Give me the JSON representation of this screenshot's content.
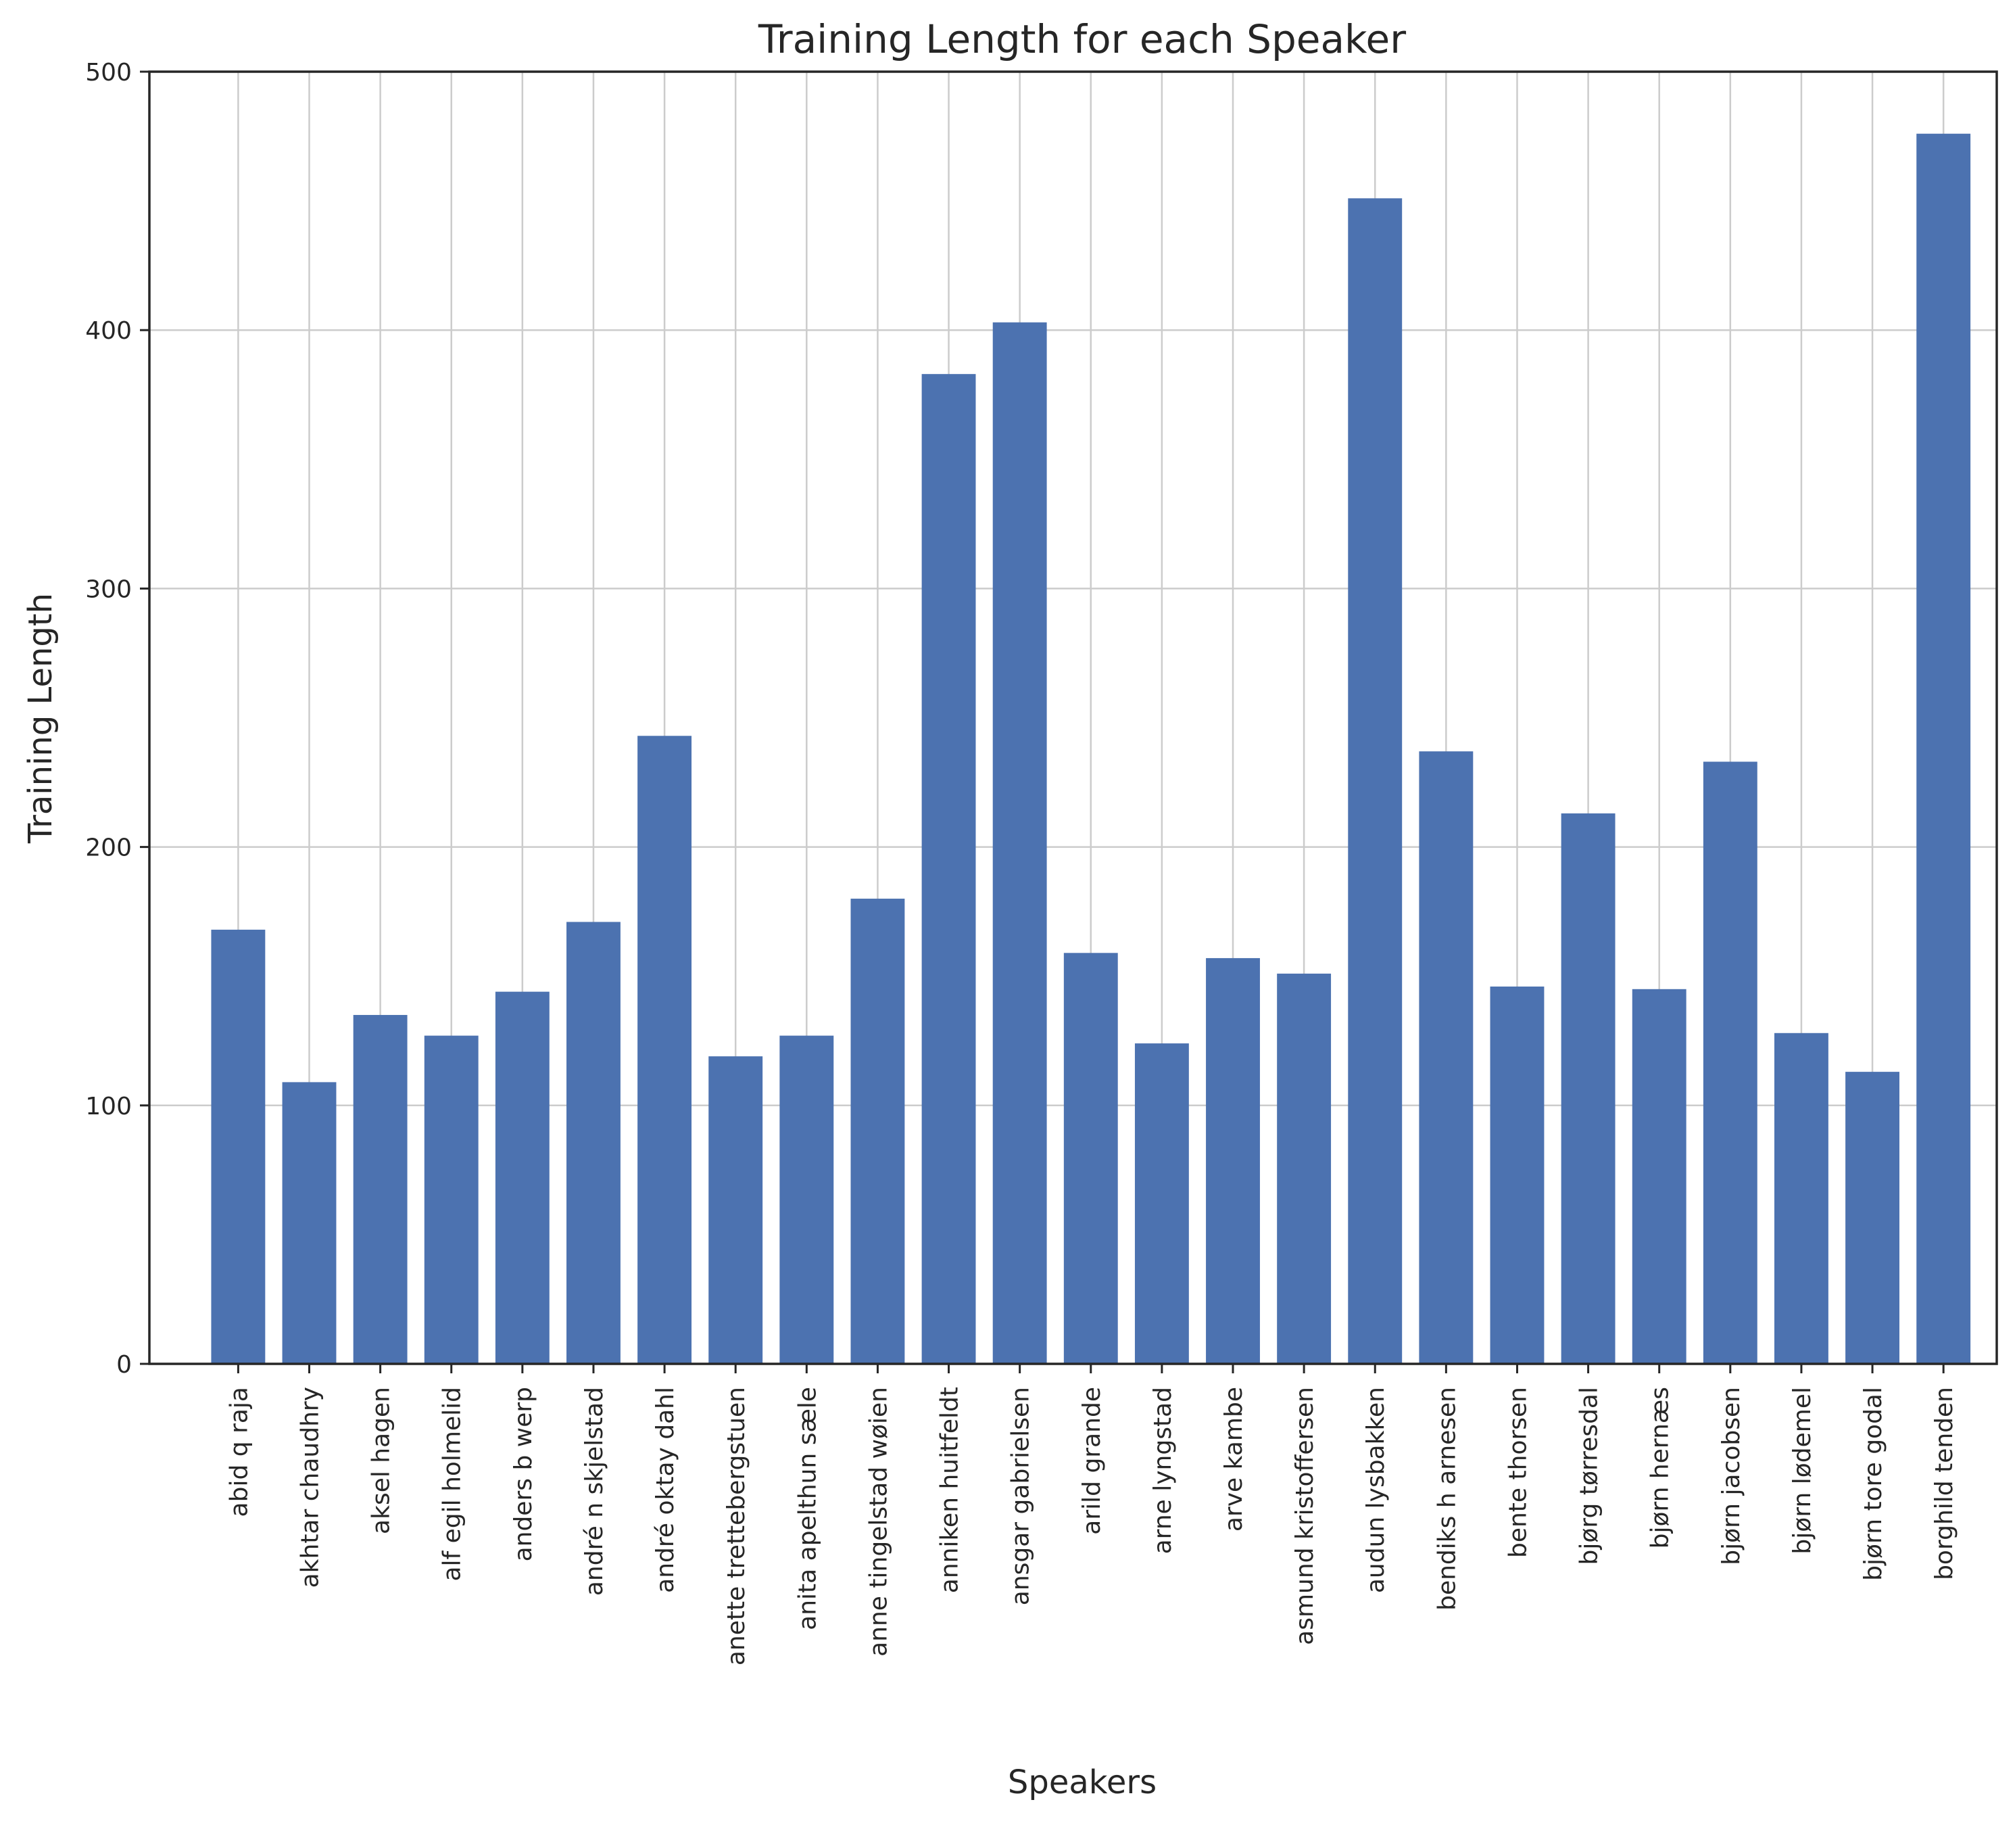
{
  "chart_data": {
    "type": "bar",
    "title": "Training Length for each Speaker",
    "xlabel": "Speakers",
    "ylabel": "Training Length",
    "ylim": [
      0,
      500
    ],
    "yticks": [
      0,
      100,
      200,
      300,
      400,
      500
    ],
    "ytick_labels": [
      "0",
      "100",
      "200",
      "300",
      "400",
      "500"
    ],
    "grid": true,
    "bar_color": "#4c72b0",
    "categories": [
      "abid q raja",
      "akhtar chaudhry",
      "aksel hagen",
      "alf egil holmelid",
      "anders b werp",
      "andré n skjelstad",
      "andré oktay dahl",
      "anette trettebergstuen",
      "anita apelthun sæle",
      "anne tingelstad wøien",
      "anniken huitfeldt",
      "ansgar gabrielsen",
      "arild grande",
      "arne lyngstad",
      "arve kambe",
      "asmund kristoffersen",
      "audun lysbakken",
      "bendiks h arnesen",
      "bente thorsen",
      "bjørg tørresdal",
      "bjørn hernæs",
      "bjørn jacobsen",
      "bjørn lødemel",
      "bjørn tore godal",
      "borghild tenden"
    ],
    "values": [
      168,
      109,
      135,
      127,
      144,
      171,
      243,
      119,
      127,
      180,
      383,
      403,
      159,
      124,
      157,
      151,
      451,
      237,
      146,
      213,
      145,
      233,
      128,
      113,
      476
    ]
  }
}
